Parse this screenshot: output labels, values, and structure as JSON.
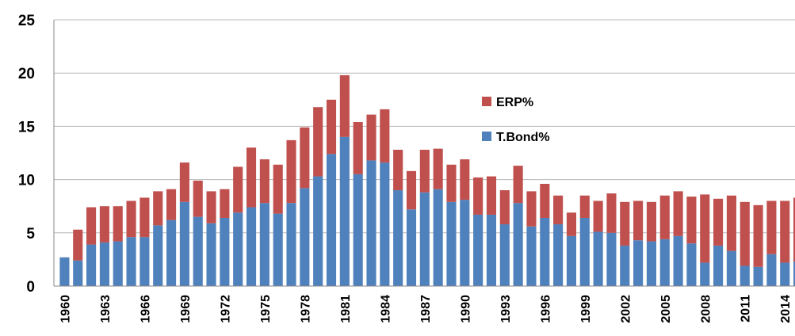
{
  "chart_data": {
    "type": "bar",
    "stacked": true,
    "categories": [
      "1960",
      null,
      null,
      "1963",
      null,
      null,
      "1966",
      null,
      null,
      "1969",
      null,
      null,
      "1972",
      null,
      null,
      "1975",
      null,
      null,
      "1978",
      null,
      null,
      "1981",
      null,
      null,
      "1984",
      null,
      null,
      "1987",
      null,
      null,
      "1990",
      null,
      null,
      "1993",
      null,
      null,
      "1996",
      null,
      null,
      "1999",
      null,
      null,
      "2002",
      null,
      null,
      "2005",
      null,
      null,
      "2008",
      null,
      null,
      "2011",
      null,
      null,
      "2014",
      null
    ],
    "series": [
      {
        "name": "T.Bond%",
        "color": "#4f81bd",
        "values": [
          2.7,
          2.4,
          3.9,
          4.1,
          4.2,
          4.6,
          4.6,
          5.7,
          6.2,
          7.9,
          6.5,
          5.9,
          6.4,
          6.9,
          7.4,
          7.8,
          6.8,
          7.8,
          9.2,
          10.3,
          12.4,
          14.0,
          10.5,
          11.8,
          11.6,
          9.0,
          7.2,
          8.8,
          9.1,
          7.9,
          8.1,
          6.7,
          6.7,
          5.8,
          7.8,
          5.6,
          6.4,
          5.8,
          4.7,
          6.4,
          5.1,
          5.0,
          3.8,
          4.3,
          4.2,
          4.4,
          4.7,
          4.0,
          2.2,
          3.8,
          3.3,
          1.9,
          1.8,
          3.0,
          2.2,
          2.3
        ]
      },
      {
        "name": "ERP%",
        "color": "#c0504d",
        "values": [
          0,
          2.9,
          3.5,
          3.4,
          3.3,
          3.4,
          3.7,
          3.2,
          2.9,
          3.7,
          3.4,
          3.0,
          2.7,
          4.3,
          5.6,
          4.1,
          4.6,
          5.9,
          5.7,
          6.5,
          5.1,
          5.8,
          4.9,
          4.3,
          5.0,
          3.8,
          3.6,
          4.0,
          3.8,
          3.5,
          3.8,
          3.5,
          3.6,
          3.2,
          3.5,
          3.3,
          3.2,
          2.7,
          2.2,
          2.1,
          2.9,
          3.7,
          4.1,
          3.7,
          3.7,
          4.1,
          4.2,
          4.4,
          6.4,
          4.4,
          5.2,
          6.0,
          5.8,
          5.0,
          5.8,
          6.0
        ]
      }
    ],
    "ylim": [
      0,
      25
    ],
    "yticks": [
      0,
      5,
      10,
      15,
      20,
      25
    ],
    "grid": true,
    "legend": "upper-center"
  }
}
